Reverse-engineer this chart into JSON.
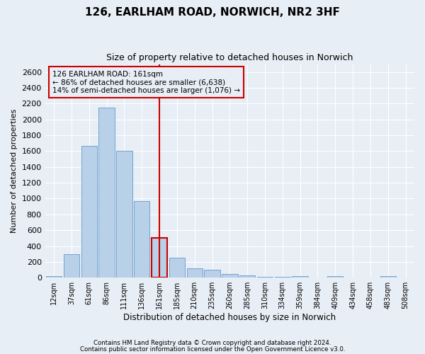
{
  "title_line1": "126, EARLHAM ROAD, NORWICH, NR2 3HF",
  "title_line2": "Size of property relative to detached houses in Norwich",
  "xlabel": "Distribution of detached houses by size in Norwich",
  "ylabel": "Number of detached properties",
  "categories": [
    "12sqm",
    "37sqm",
    "61sqm",
    "86sqm",
    "111sqm",
    "136sqm",
    "161sqm",
    "185sqm",
    "210sqm",
    "235sqm",
    "260sqm",
    "285sqm",
    "310sqm",
    "334sqm",
    "359sqm",
    "384sqm",
    "409sqm",
    "434sqm",
    "458sqm",
    "483sqm",
    "508sqm"
  ],
  "values": [
    20,
    300,
    1670,
    2150,
    1600,
    970,
    500,
    250,
    120,
    100,
    45,
    25,
    15,
    10,
    20,
    5,
    20,
    5,
    5,
    20,
    5
  ],
  "bar_color": "#b8d0e8",
  "bar_edgecolor": "#6699cc",
  "highlight_index": 6,
  "highlight_color": "#cc0000",
  "annotation_line1": "126 EARLHAM ROAD: 161sqm",
  "annotation_line2": "← 86% of detached houses are smaller (6,638)",
  "annotation_line3": "14% of semi-detached houses are larger (1,076) →",
  "annotation_box_edgecolor": "#cc0000",
  "ylim": [
    0,
    2700
  ],
  "yticks": [
    0,
    200,
    400,
    600,
    800,
    1000,
    1200,
    1400,
    1600,
    1800,
    2000,
    2200,
    2400,
    2600
  ],
  "footnote1": "Contains HM Land Registry data © Crown copyright and database right 2024.",
  "footnote2": "Contains public sector information licensed under the Open Government Licence v3.0.",
  "background_color": "#e8eef5",
  "grid_color": "#ffffff"
}
